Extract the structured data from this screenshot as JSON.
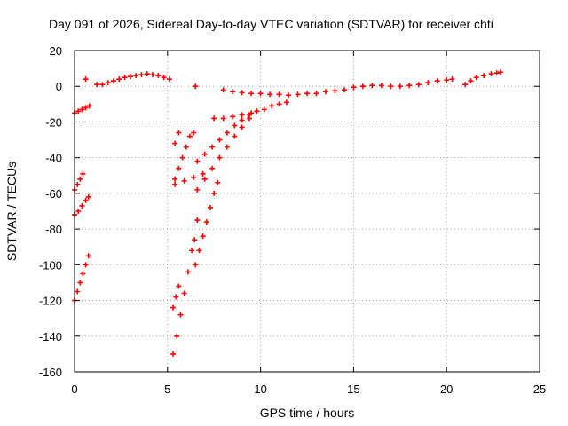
{
  "chart_data": {
    "type": "scatter",
    "title": "Day 091 of 2026, Sidereal Day-to-day VTEC variation (SDTVAR) for receiver chti",
    "xlabel": "GPS time / hours",
    "ylabel": "SDTVAR / TECUs",
    "xlim": [
      0,
      25
    ],
    "ylim": [
      -160,
      20
    ],
    "xticks": [
      0,
      5,
      10,
      15,
      20,
      25
    ],
    "yticks": [
      -160,
      -140,
      -120,
      -100,
      -80,
      -60,
      -40,
      -20,
      0,
      20
    ],
    "grid": true,
    "marker": "plus",
    "color": "#ff0000",
    "series": [
      {
        "points": [
          [
            0.0,
            -15
          ],
          [
            0.2,
            -14
          ],
          [
            0.4,
            -13
          ],
          [
            0.6,
            -12
          ],
          [
            0.8,
            -11
          ],
          [
            0.0,
            -58
          ],
          [
            0.15,
            -55
          ],
          [
            0.3,
            -52
          ],
          [
            0.45,
            -49
          ],
          [
            0.0,
            -72
          ],
          [
            0.2,
            -70
          ],
          [
            0.4,
            -67
          ],
          [
            0.6,
            -64
          ],
          [
            0.75,
            -62
          ],
          [
            0.0,
            -120
          ],
          [
            0.15,
            -115
          ],
          [
            0.3,
            -110
          ],
          [
            0.45,
            -105
          ],
          [
            0.6,
            -100
          ],
          [
            0.75,
            -95
          ],
          [
            0.6,
            4
          ],
          [
            1.2,
            1
          ],
          [
            1.5,
            1
          ],
          [
            1.8,
            2
          ],
          [
            2.1,
            3
          ],
          [
            2.4,
            4
          ],
          [
            2.7,
            5
          ],
          [
            3.0,
            5.5
          ],
          [
            3.3,
            6
          ],
          [
            3.6,
            6.5
          ],
          [
            3.9,
            7
          ],
          [
            4.2,
            6.5
          ],
          [
            4.5,
            6
          ],
          [
            4.8,
            5
          ],
          [
            5.1,
            4
          ],
          [
            6.5,
            0
          ],
          [
            5.3,
            -150
          ],
          [
            5.5,
            -140
          ],
          [
            5.7,
            -128
          ],
          [
            5.9,
            -116
          ],
          [
            6.1,
            -104
          ],
          [
            6.3,
            -92
          ],
          [
            6.45,
            -86
          ],
          [
            5.3,
            -124
          ],
          [
            5.45,
            -118
          ],
          [
            5.6,
            -112
          ],
          [
            6.5,
            -100
          ],
          [
            6.7,
            -92
          ],
          [
            6.9,
            -84
          ],
          [
            7.1,
            -76
          ],
          [
            7.3,
            -68
          ],
          [
            7.5,
            -60
          ],
          [
            7.7,
            -54
          ],
          [
            6.6,
            -75
          ],
          [
            5.4,
            -52
          ],
          [
            5.6,
            -46
          ],
          [
            5.8,
            -40
          ],
          [
            6.0,
            -34
          ],
          [
            6.2,
            -28
          ],
          [
            6.4,
            -26
          ],
          [
            5.4,
            -32
          ],
          [
            5.6,
            -26
          ],
          [
            5.4,
            -55
          ],
          [
            5.9,
            -53
          ],
          [
            6.4,
            -51
          ],
          [
            6.9,
            -49
          ],
          [
            6.6,
            -58
          ],
          [
            7.0,
            -52
          ],
          [
            7.4,
            -46
          ],
          [
            7.8,
            -40
          ],
          [
            8.2,
            -34
          ],
          [
            8.6,
            -28
          ],
          [
            9.0,
            -23
          ],
          [
            9.4,
            -18
          ],
          [
            6.6,
            -42
          ],
          [
            7.0,
            -38
          ],
          [
            7.4,
            -34
          ],
          [
            7.8,
            -30
          ],
          [
            8.2,
            -26
          ],
          [
            8.6,
            -22
          ],
          [
            9.0,
            -19
          ],
          [
            9.4,
            -16
          ],
          [
            9.8,
            -14
          ],
          [
            10.2,
            -13
          ],
          [
            10.6,
            -11
          ],
          [
            11.0,
            -10
          ],
          [
            11.4,
            -9
          ],
          [
            7.5,
            -18
          ],
          [
            8.0,
            -18
          ],
          [
            8.5,
            -17
          ],
          [
            9.0,
            -16
          ],
          [
            9.5,
            -15
          ],
          [
            9.8,
            -14
          ],
          [
            8.0,
            -2
          ],
          [
            8.5,
            -3
          ],
          [
            9.0,
            -3.5
          ],
          [
            9.5,
            -4
          ],
          [
            10.0,
            -4
          ],
          [
            10.5,
            -4.5
          ],
          [
            11.0,
            -4.5
          ],
          [
            11.5,
            -5
          ],
          [
            12.0,
            -4.5
          ],
          [
            12.5,
            -4
          ],
          [
            13.0,
            -4
          ],
          [
            13.5,
            -3
          ],
          [
            14.0,
            -2.5
          ],
          [
            14.5,
            -2
          ],
          [
            15.0,
            -0.5
          ],
          [
            15.5,
            0
          ],
          [
            16.0,
            0.5
          ],
          [
            16.5,
            0.5
          ],
          [
            17.0,
            0
          ],
          [
            17.5,
            0
          ],
          [
            18.0,
            0.5
          ],
          [
            18.5,
            1
          ],
          [
            19.0,
            2
          ],
          [
            19.5,
            3
          ],
          [
            20.0,
            3.5
          ],
          [
            20.3,
            4
          ],
          [
            21.0,
            1
          ],
          [
            21.3,
            3
          ],
          [
            21.6,
            5
          ],
          [
            22.0,
            6
          ],
          [
            22.4,
            7
          ],
          [
            22.7,
            7.5
          ],
          [
            22.9,
            8
          ]
        ]
      }
    ]
  }
}
